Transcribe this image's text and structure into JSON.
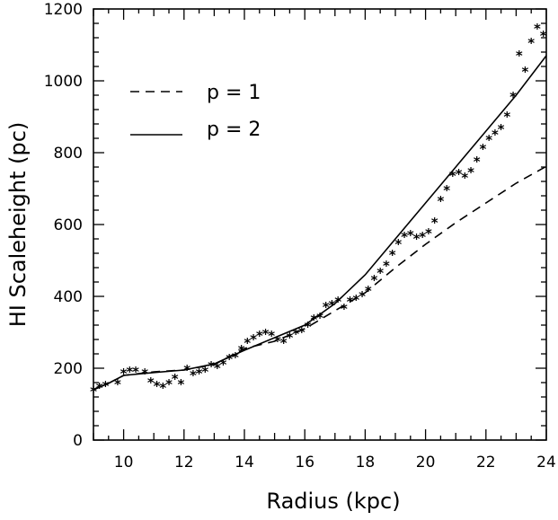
{
  "chart_data": {
    "type": "line",
    "title": "",
    "xlabel": "Radius (kpc)",
    "ylabel": "HI Scaleheight (pc)",
    "xlim": [
      9,
      24
    ],
    "ylim": [
      0,
      1200
    ],
    "xticks": [
      10,
      12,
      14,
      16,
      18,
      20,
      22,
      24
    ],
    "yticks": [
      0,
      200,
      400,
      600,
      800,
      1000,
      1200
    ],
    "grid": false,
    "legend_position": "top-left",
    "series": [
      {
        "name": "p = 1",
        "style": "dashed",
        "x": [
          9.0,
          9.5,
          10.0,
          11.0,
          12.0,
          13.0,
          14.0,
          15.0,
          16.0,
          16.5,
          17.0,
          18.0,
          19.0,
          20.0,
          21.0,
          22.0,
          23.0,
          24.0
        ],
        "y": [
          140,
          158,
          180,
          190,
          195,
          210,
          255,
          275,
          310,
          335,
          360,
          410,
          480,
          545,
          605,
          660,
          715,
          762
        ]
      },
      {
        "name": "p = 2",
        "style": "solid",
        "x": [
          9.0,
          9.5,
          10.0,
          11.0,
          12.0,
          13.0,
          14.0,
          15.0,
          16.0,
          17.0,
          18.0,
          19.0,
          20.0,
          21.0,
          22.0,
          23.0,
          24.0
        ],
        "y": [
          140,
          158,
          180,
          188,
          195,
          212,
          250,
          285,
          320,
          380,
          460,
          560,
          660,
          760,
          860,
          960,
          1070
        ]
      },
      {
        "name": "",
        "style": "markers",
        "x": [
          9.0,
          9.2,
          9.4,
          9.8,
          10.0,
          10.2,
          10.4,
          10.7,
          10.9,
          11.1,
          11.3,
          11.5,
          11.7,
          11.9,
          12.1,
          12.3,
          12.5,
          12.7,
          12.9,
          13.1,
          13.3,
          13.5,
          13.7,
          13.9,
          14.1,
          14.3,
          14.5,
          14.7,
          14.9,
          15.1,
          15.3,
          15.5,
          15.7,
          15.9,
          16.1,
          16.3,
          16.5,
          16.7,
          16.9,
          17.1,
          17.3,
          17.5,
          17.7,
          17.9,
          18.1,
          18.3,
          18.5,
          18.7,
          18.9,
          19.1,
          19.3,
          19.5,
          19.7,
          19.9,
          20.1,
          20.3,
          20.5,
          20.7,
          20.9,
          21.1,
          21.3,
          21.5,
          21.7,
          21.9,
          22.1,
          22.3,
          22.5,
          22.7,
          22.9,
          23.1,
          23.3,
          23.5,
          23.7,
          23.9
        ],
        "y": [
          140,
          150,
          155,
          160,
          190,
          195,
          195,
          190,
          165,
          155,
          150,
          160,
          175,
          160,
          200,
          185,
          190,
          195,
          210,
          205,
          215,
          230,
          235,
          255,
          275,
          285,
          295,
          300,
          295,
          280,
          275,
          290,
          300,
          305,
          320,
          340,
          345,
          375,
          380,
          390,
          370,
          390,
          395,
          405,
          420,
          450,
          470,
          490,
          520,
          550,
          570,
          575,
          565,
          570,
          580,
          610,
          670,
          700,
          740,
          745,
          735,
          750,
          780,
          815,
          840,
          855,
          870,
          905,
          960,
          1075,
          1030,
          1110,
          1150,
          1130
        ]
      }
    ]
  }
}
